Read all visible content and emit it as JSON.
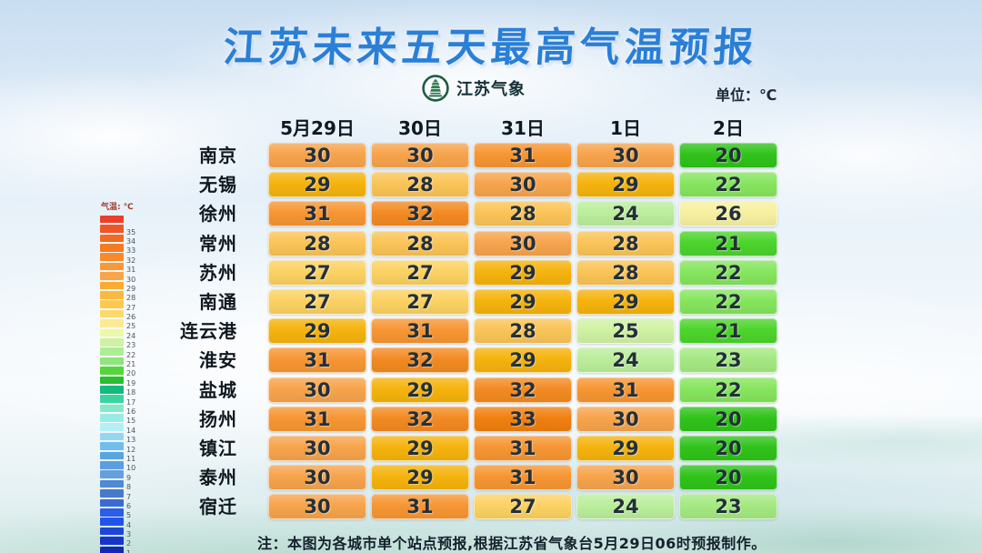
{
  "title": "江苏未来五天最高气温预报",
  "brand": {
    "name": "江苏气象",
    "logo_icon": "pagoda-emblem"
  },
  "unit_label": "单位：℃",
  "note": "注：本图为各城市单个站点预报,根据江苏省气象台5月29日06时预报制作。",
  "colors": {
    "title_blue": "#2A7FD6",
    "legend_title_red": "#9C3D2E"
  },
  "legend": {
    "title": "气温: ℃",
    "bands": [
      {
        "label": "",
        "color": "#E8402B"
      },
      {
        "label": "35",
        "color": "#EE5626"
      },
      {
        "label": "34",
        "color": "#F26A21"
      },
      {
        "label": "33",
        "color": "#F47C1E"
      },
      {
        "label": "32",
        "color": "#F68A28"
      },
      {
        "label": "31",
        "color": "#F89838"
      },
      {
        "label": "30",
        "color": "#F9A446"
      },
      {
        "label": "29",
        "color": "#FAAC30"
      },
      {
        "label": "28",
        "color": "#FBB93E"
      },
      {
        "label": "27",
        "color": "#FCC850"
      },
      {
        "label": "26",
        "color": "#FDD96A"
      },
      {
        "label": "25",
        "color": "#FDEB94"
      },
      {
        "label": "24",
        "color": "#EDF8A8"
      },
      {
        "label": "23",
        "color": "#CDF2A2"
      },
      {
        "label": "22",
        "color": "#AEEC95"
      },
      {
        "label": "21",
        "color": "#8DE57B"
      },
      {
        "label": "20",
        "color": "#55D43C"
      },
      {
        "label": "19",
        "color": "#2BBE32"
      },
      {
        "label": "18",
        "color": "#13BA7C"
      },
      {
        "label": "17",
        "color": "#3BD4A0"
      },
      {
        "label": "16",
        "color": "#87E8C8"
      },
      {
        "label": "15",
        "color": "#9AEBE7"
      },
      {
        "label": "14",
        "color": "#B4EFF5"
      },
      {
        "label": "13",
        "color": "#95D5F2"
      },
      {
        "label": "12",
        "color": "#72BEEB"
      },
      {
        "label": "11",
        "color": "#57A6E2"
      },
      {
        "label": "10",
        "color": "#5C9FE0"
      },
      {
        "label": "9",
        "color": "#659FDC"
      },
      {
        "label": "8",
        "color": "#5089D4"
      },
      {
        "label": "7",
        "color": "#477ACF"
      },
      {
        "label": "6",
        "color": "#3B6AD2"
      },
      {
        "label": "5",
        "color": "#2C5DE4"
      },
      {
        "label": "4",
        "color": "#2253E9"
      },
      {
        "label": "3",
        "color": "#1C45D9"
      },
      {
        "label": "2",
        "color": "#1636C8"
      },
      {
        "label": "1",
        "color": "#1028B4"
      }
    ]
  },
  "temp_colors": {
    "33": "#F0800F",
    "32": "#F38A22",
    "31": "#F79633",
    "30": "#F7A44C",
    "29": "#F5B30D",
    "28": "#FAC457",
    "27": "#FBD262",
    "26": "#F8F0A0",
    "25": "#D0F2A4",
    "24": "#BBEE9C",
    "23": "#A5E982",
    "22": "#86E55D",
    "21": "#4CD42C",
    "20": "#30C31A"
  },
  "chart_data": {
    "type": "heatmap",
    "title": "江苏未来五天最高气温预报",
    "unit": "℃",
    "x": [
      "5月29日",
      "30日",
      "31日",
      "1日",
      "2日"
    ],
    "y": [
      "南京",
      "无锡",
      "徐州",
      "常州",
      "苏州",
      "南通",
      "连云港",
      "淮安",
      "盐城",
      "扬州",
      "镇江",
      "泰州",
      "宿迁"
    ],
    "values": [
      [
        30,
        30,
        31,
        30,
        20
      ],
      [
        29,
        28,
        30,
        29,
        22
      ],
      [
        31,
        32,
        28,
        24,
        26
      ],
      [
        28,
        28,
        30,
        28,
        21
      ],
      [
        27,
        27,
        29,
        28,
        22
      ],
      [
        27,
        27,
        29,
        29,
        22
      ],
      [
        29,
        31,
        28,
        25,
        21
      ],
      [
        31,
        32,
        29,
        24,
        23
      ],
      [
        30,
        29,
        32,
        31,
        22
      ],
      [
        31,
        32,
        33,
        30,
        20
      ],
      [
        30,
        29,
        31,
        29,
        20
      ],
      [
        30,
        29,
        31,
        30,
        20
      ],
      [
        30,
        31,
        27,
        24,
        23
      ]
    ],
    "colorscale_range": [
      1,
      35
    ],
    "legend_position": "left"
  }
}
